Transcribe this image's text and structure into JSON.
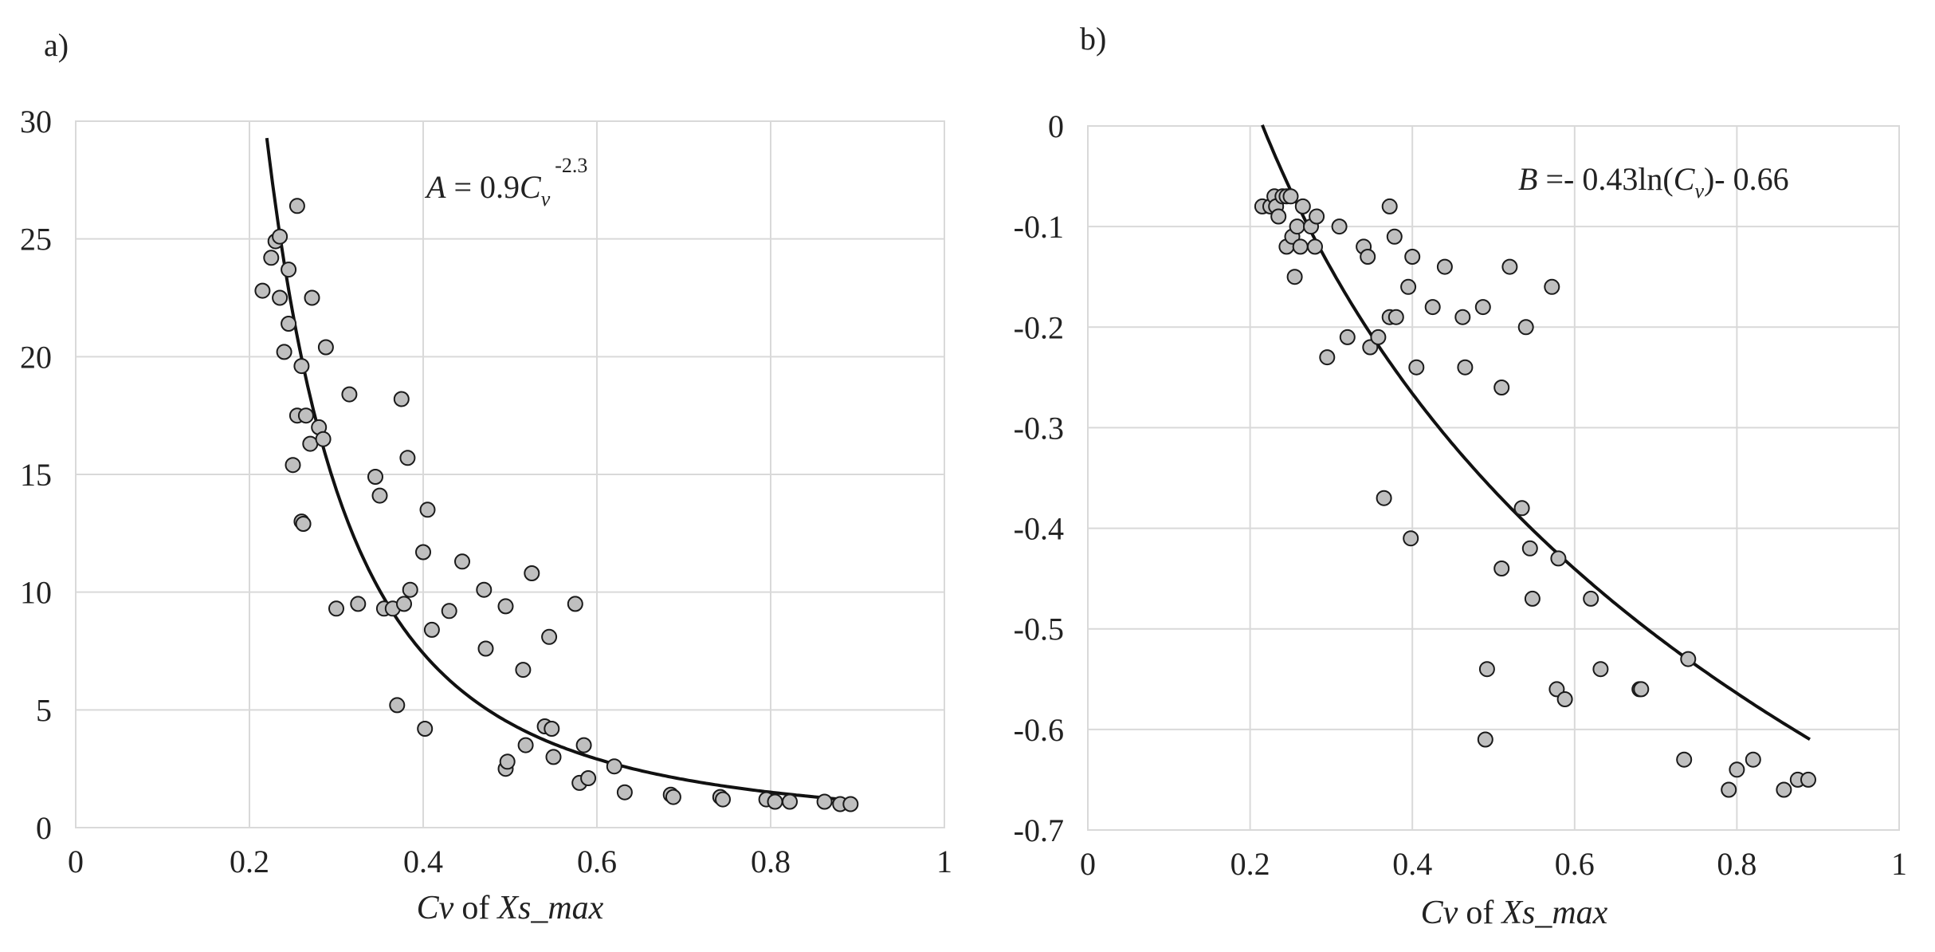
{
  "chart_data": [
    {
      "id": "a",
      "type": "scatter",
      "panel_label": "a)",
      "xlabel_var": "Cv",
      "xlabel_of": "of",
      "xlabel_series": "Xs_max",
      "xlim": [
        0,
        1
      ],
      "ylim": [
        0,
        30
      ],
      "xticks": [
        0,
        0.2,
        0.4,
        0.6,
        0.8,
        1
      ],
      "yticks": [
        0,
        5,
        10,
        15,
        20,
        25,
        30
      ],
      "xtick_labels": [
        "0",
        "0.2",
        "0.4",
        "0.6",
        "0.8",
        "1"
      ],
      "ytick_labels": [
        "0",
        "5",
        "10",
        "15",
        "20",
        "25",
        "30"
      ],
      "equation_lhs": "A",
      "equation_eq": " = 0.9",
      "equation_c": "C",
      "equation_sub": "v",
      "equation_exp": "-2.3",
      "fit": {
        "form": "power",
        "a": 0.9,
        "b": -2.3,
        "x_from": 0.22,
        "x_to": 0.89
      },
      "points": [
        [
          0.215,
          22.8
        ],
        [
          0.225,
          24.2
        ],
        [
          0.23,
          24.9
        ],
        [
          0.235,
          25.1
        ],
        [
          0.235,
          22.5
        ],
        [
          0.24,
          20.2
        ],
        [
          0.245,
          23.7
        ],
        [
          0.245,
          21.4
        ],
        [
          0.25,
          15.4
        ],
        [
          0.255,
          26.4
        ],
        [
          0.255,
          17.5
        ],
        [
          0.26,
          19.6
        ],
        [
          0.26,
          13.0
        ],
        [
          0.262,
          12.9
        ],
        [
          0.265,
          17.5
        ],
        [
          0.27,
          16.3
        ],
        [
          0.272,
          22.5
        ],
        [
          0.28,
          17.0
        ],
        [
          0.285,
          16.5
        ],
        [
          0.288,
          20.4
        ],
        [
          0.3,
          9.3
        ],
        [
          0.315,
          18.4
        ],
        [
          0.325,
          9.5
        ],
        [
          0.345,
          14.9
        ],
        [
          0.35,
          14.1
        ],
        [
          0.355,
          9.3
        ],
        [
          0.365,
          9.3
        ],
        [
          0.37,
          5.2
        ],
        [
          0.375,
          18.2
        ],
        [
          0.378,
          9.5
        ],
        [
          0.382,
          15.7
        ],
        [
          0.385,
          10.1
        ],
        [
          0.4,
          11.7
        ],
        [
          0.402,
          4.2
        ],
        [
          0.405,
          13.5
        ],
        [
          0.41,
          8.4
        ],
        [
          0.43,
          9.2
        ],
        [
          0.445,
          11.3
        ],
        [
          0.47,
          10.1
        ],
        [
          0.472,
          7.6
        ],
        [
          0.495,
          9.4
        ],
        [
          0.495,
          2.5
        ],
        [
          0.497,
          2.8
        ],
        [
          0.515,
          6.7
        ],
        [
          0.518,
          3.5
        ],
        [
          0.525,
          10.8
        ],
        [
          0.54,
          4.3
        ],
        [
          0.545,
          8.1
        ],
        [
          0.548,
          4.2
        ],
        [
          0.55,
          3.0
        ],
        [
          0.575,
          9.5
        ],
        [
          0.58,
          1.9
        ],
        [
          0.585,
          3.5
        ],
        [
          0.59,
          2.1
        ],
        [
          0.62,
          2.6
        ],
        [
          0.632,
          1.5
        ],
        [
          0.685,
          1.4
        ],
        [
          0.688,
          1.3
        ],
        [
          0.742,
          1.3
        ],
        [
          0.745,
          1.2
        ],
        [
          0.795,
          1.2
        ],
        [
          0.805,
          1.1
        ],
        [
          0.822,
          1.1
        ],
        [
          0.862,
          1.1
        ],
        [
          0.88,
          1.0
        ],
        [
          0.892,
          1.0
        ]
      ]
    },
    {
      "id": "b",
      "type": "scatter",
      "panel_label": "b)",
      "xlabel_var": "Cv",
      "xlabel_of": "of",
      "xlabel_series": "Xs_max",
      "xlim": [
        0,
        1
      ],
      "ylim": [
        -0.7,
        0
      ],
      "xticks": [
        0,
        0.2,
        0.4,
        0.6,
        0.8,
        1
      ],
      "yticks": [
        0,
        -0.1,
        -0.2,
        -0.3,
        -0.4,
        -0.5,
        -0.6,
        -0.7
      ],
      "xtick_labels": [
        "0",
        "0.2",
        "0.4",
        "0.6",
        "0.8",
        "1"
      ],
      "ytick_labels": [
        "0",
        "-0.1",
        "-0.2",
        "-0.3",
        "-0.4",
        "-0.5",
        "-0.6",
        "-0.7"
      ],
      "equation_lhs": "B",
      "equation_eq": " =- 0.43ln(",
      "equation_c": "C",
      "equation_sub": "v",
      "equation_tail": ")- 0.66",
      "fit": {
        "form": "log",
        "a": -0.43,
        "b": -0.66,
        "x_from": 0.215,
        "x_to": 0.89
      },
      "points": [
        [
          0.215,
          -0.08
        ],
        [
          0.225,
          -0.08
        ],
        [
          0.23,
          -0.07
        ],
        [
          0.232,
          -0.08
        ],
        [
          0.235,
          -0.09
        ],
        [
          0.24,
          -0.07
        ],
        [
          0.245,
          -0.07
        ],
        [
          0.245,
          -0.12
        ],
        [
          0.25,
          -0.07
        ],
        [
          0.252,
          -0.11
        ],
        [
          0.255,
          -0.15
        ],
        [
          0.258,
          -0.1
        ],
        [
          0.262,
          -0.12
        ],
        [
          0.265,
          -0.08
        ],
        [
          0.275,
          -0.1
        ],
        [
          0.28,
          -0.12
        ],
        [
          0.282,
          -0.09
        ],
        [
          0.295,
          -0.23
        ],
        [
          0.31,
          -0.1
        ],
        [
          0.32,
          -0.21
        ],
        [
          0.34,
          -0.12
        ],
        [
          0.345,
          -0.13
        ],
        [
          0.348,
          -0.22
        ],
        [
          0.358,
          -0.21
        ],
        [
          0.365,
          -0.37
        ],
        [
          0.372,
          -0.08
        ],
        [
          0.372,
          -0.19
        ],
        [
          0.378,
          -0.11
        ],
        [
          0.38,
          -0.19
        ],
        [
          0.395,
          -0.16
        ],
        [
          0.398,
          -0.41
        ],
        [
          0.4,
          -0.13
        ],
        [
          0.405,
          -0.24
        ],
        [
          0.425,
          -0.18
        ],
        [
          0.44,
          -0.14
        ],
        [
          0.462,
          -0.19
        ],
        [
          0.465,
          -0.24
        ],
        [
          0.487,
          -0.18
        ],
        [
          0.49,
          -0.61
        ],
        [
          0.492,
          -0.54
        ],
        [
          0.51,
          -0.26
        ],
        [
          0.51,
          -0.44
        ],
        [
          0.52,
          -0.14
        ],
        [
          0.535,
          -0.38
        ],
        [
          0.54,
          -0.2
        ],
        [
          0.545,
          -0.42
        ],
        [
          0.548,
          -0.47
        ],
        [
          0.572,
          -0.16
        ],
        [
          0.578,
          -0.56
        ],
        [
          0.58,
          -0.43
        ],
        [
          0.588,
          -0.57
        ],
        [
          0.62,
          -0.47
        ],
        [
          0.632,
          -0.54
        ],
        [
          0.68,
          -0.56
        ],
        [
          0.682,
          -0.56
        ],
        [
          0.735,
          -0.63
        ],
        [
          0.74,
          -0.53
        ],
        [
          0.79,
          -0.66
        ],
        [
          0.8,
          -0.64
        ],
        [
          0.82,
          -0.63
        ],
        [
          0.858,
          -0.66
        ],
        [
          0.875,
          -0.65
        ],
        [
          0.888,
          -0.65
        ]
      ]
    }
  ]
}
